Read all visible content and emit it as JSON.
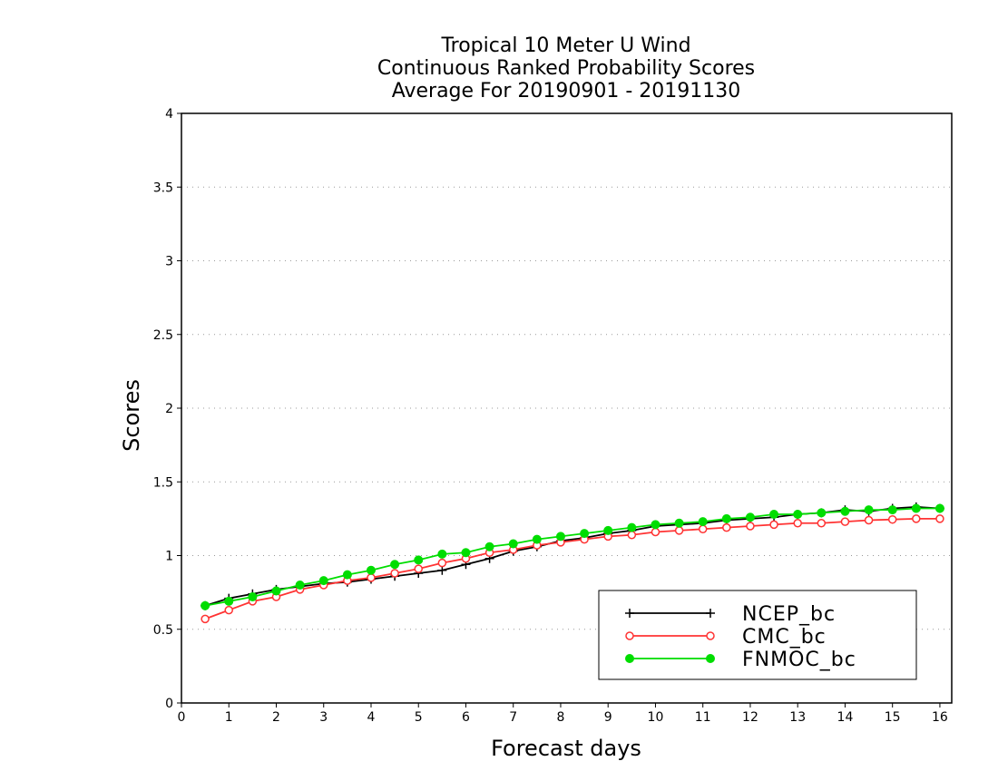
{
  "chart_data": {
    "type": "line",
    "title_lines": [
      "Tropical 10 Meter U Wind",
      "Continuous Ranked Probability Scores",
      "Average For 20190901 - 20191130"
    ],
    "xlabel": "Forecast days",
    "ylabel": "Scores",
    "xlim": [
      0,
      16.25
    ],
    "ylim": [
      0,
      4
    ],
    "xticks": [
      "0",
      "1",
      "2",
      "3",
      "4",
      "5",
      "6",
      "7",
      "8",
      "9",
      "10",
      "11",
      "12",
      "13",
      "14",
      "15",
      "16"
    ],
    "yticks": [
      "0",
      "0.5",
      "1",
      "1.5",
      "2",
      "2.5",
      "3",
      "3.5",
      "4"
    ],
    "grid": "horizontal dotted",
    "legend_position": "bottom-right",
    "x": [
      0.5,
      1,
      1.5,
      2,
      2.5,
      3,
      3.5,
      4,
      4.5,
      5,
      5.5,
      6,
      6.5,
      7,
      7.5,
      8,
      8.5,
      9,
      9.5,
      10,
      10.5,
      11,
      11.5,
      12,
      12.5,
      13,
      13.5,
      14,
      14.5,
      15,
      15.5,
      16
    ],
    "series": [
      {
        "name": "NCEP_bc",
        "color": "#000000",
        "marker": "plus",
        "values": [
          0.66,
          0.71,
          0.74,
          0.77,
          0.79,
          0.81,
          0.82,
          0.84,
          0.86,
          0.88,
          0.9,
          0.94,
          0.98,
          1.03,
          1.06,
          1.1,
          1.12,
          1.15,
          1.17,
          1.2,
          1.21,
          1.22,
          1.24,
          1.25,
          1.26,
          1.28,
          1.29,
          1.31,
          1.3,
          1.32,
          1.33,
          1.32
        ]
      },
      {
        "name": "CMC_bc",
        "color": "#ff3333",
        "marker": "open-circle",
        "values": [
          0.57,
          0.63,
          0.69,
          0.72,
          0.77,
          0.8,
          0.83,
          0.85,
          0.88,
          0.91,
          0.95,
          0.98,
          1.02,
          1.04,
          1.07,
          1.09,
          1.11,
          1.13,
          1.14,
          1.16,
          1.17,
          1.18,
          1.19,
          1.2,
          1.21,
          1.22,
          1.22,
          1.23,
          1.24,
          1.245,
          1.25,
          1.25
        ]
      },
      {
        "name": "FNMOC_bc",
        "color": "#00dd00",
        "marker": "filled-circle",
        "values": [
          0.66,
          0.69,
          0.72,
          0.76,
          0.8,
          0.83,
          0.87,
          0.9,
          0.94,
          0.97,
          1.01,
          1.02,
          1.06,
          1.08,
          1.11,
          1.13,
          1.15,
          1.17,
          1.19,
          1.21,
          1.22,
          1.23,
          1.25,
          1.26,
          1.28,
          1.28,
          1.29,
          1.3,
          1.31,
          1.31,
          1.32,
          1.32
        ]
      }
    ]
  }
}
